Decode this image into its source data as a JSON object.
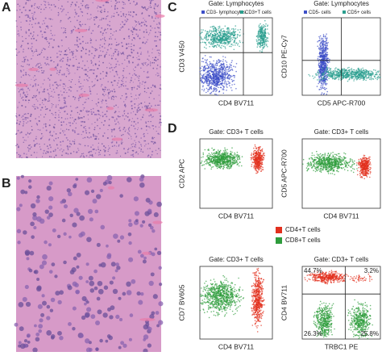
{
  "panels": [
    "A",
    "B",
    "C",
    "D"
  ],
  "plots": [
    {
      "gate": "Gate: Lymphocytes",
      "legend": [
        "CD3- lymphocytes",
        "CD3+T cells"
      ],
      "x_label": "CD4 BV711",
      "y_label": "CD3 V450"
    },
    {
      "gate": "Gate: Lymphocytes",
      "legend": [
        "CD5- cells",
        "CD5+ cells"
      ],
      "x_label": "CD5 APC-R700",
      "y_label": "CD10 PE-Cy7"
    },
    {
      "gate": "Gate: CD3+ T cells",
      "x_label": "CD4 BV711",
      "y_label": "CD2 APC"
    },
    {
      "gate": "Gate: CD3+ T cells",
      "x_label": "CD4 BV711",
      "y_label": "CD5 APC-R700"
    },
    {
      "gate": "Gate: CD3+ T cells",
      "x_label": "CD4 BV711",
      "y_label": "CD7 BV605"
    },
    {
      "gate": "Gate: CD3+ T cells",
      "x_label": "TRBC1 PE",
      "y_label": "CD4 BV711",
      "quadrants": [
        "44.7%",
        "3.2%",
        "26.3%",
        "25.8%"
      ]
    }
  ],
  "legend": [
    "CD4+T cells",
    "CD8+T cells"
  ]
}
